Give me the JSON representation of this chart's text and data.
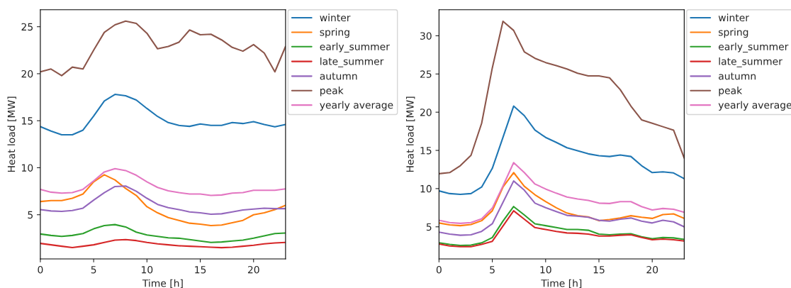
{
  "chart_data": [
    {
      "type": "line",
      "xlabel": "Time [h]",
      "ylabel": "Heat load [MW]",
      "x": [
        0,
        1,
        2,
        3,
        4,
        5,
        6,
        7,
        8,
        9,
        10,
        11,
        12,
        13,
        14,
        15,
        16,
        17,
        18,
        19,
        20,
        21,
        22,
        23
      ],
      "xlim": [
        0,
        23
      ],
      "xticks": [
        0,
        5,
        10,
        15,
        20
      ],
      "ylim": [
        0.3,
        26.8
      ],
      "yticks": [
        5,
        10,
        15,
        20,
        25
      ],
      "legend": "right",
      "grid": false,
      "series": [
        {
          "name": "winter",
          "color": "#1f77b4",
          "values": [
            14.37,
            13.9,
            13.5,
            13.5,
            14.0,
            15.5,
            17.1,
            17.8,
            17.65,
            17.2,
            16.3,
            15.45,
            14.8,
            14.5,
            14.4,
            14.65,
            14.5,
            14.5,
            14.8,
            14.7,
            14.9,
            14.6,
            14.35,
            14.6
          ]
        },
        {
          "name": "spring",
          "color": "#ff7f0e",
          "values": [
            6.4,
            6.5,
            6.5,
            6.75,
            7.2,
            8.5,
            9.25,
            8.7,
            7.8,
            7.05,
            5.85,
            5.2,
            4.7,
            4.4,
            4.1,
            4.0,
            3.85,
            3.9,
            4.15,
            4.4,
            5.0,
            5.2,
            5.55,
            6.0
          ]
        },
        {
          "name": "early_summer",
          "color": "#2ca02c",
          "values": [
            2.95,
            2.8,
            2.7,
            2.8,
            3.0,
            3.5,
            3.85,
            3.95,
            3.7,
            3.15,
            2.85,
            2.7,
            2.55,
            2.5,
            2.35,
            2.2,
            2.05,
            2.1,
            2.2,
            2.3,
            2.5,
            2.75,
            3.0,
            3.05
          ]
        },
        {
          "name": "late_summer",
          "color": "#d62728",
          "values": [
            1.95,
            1.8,
            1.65,
            1.5,
            1.65,
            1.8,
            2.05,
            2.3,
            2.35,
            2.25,
            2.05,
            1.9,
            1.8,
            1.7,
            1.65,
            1.6,
            1.55,
            1.5,
            1.55,
            1.65,
            1.75,
            1.9,
            2.0,
            2.05
          ]
        },
        {
          "name": "autumn",
          "color": "#9467bd",
          "values": [
            5.55,
            5.4,
            5.35,
            5.45,
            5.7,
            6.55,
            7.35,
            8.0,
            8.05,
            7.5,
            6.75,
            6.1,
            5.75,
            5.55,
            5.3,
            5.2,
            5.05,
            5.1,
            5.3,
            5.5,
            5.6,
            5.7,
            5.65,
            5.65
          ]
        },
        {
          "name": "peak",
          "color": "#8c564b",
          "values": [
            20.2,
            20.5,
            19.8,
            20.7,
            20.5,
            22.5,
            24.4,
            25.2,
            25.6,
            25.35,
            24.3,
            22.65,
            22.9,
            23.35,
            24.65,
            24.15,
            24.2,
            23.6,
            22.8,
            22.4,
            23.1,
            22.2,
            20.2,
            22.9
          ]
        },
        {
          "name": "yearly average",
          "color": "#e377c2",
          "values": [
            7.7,
            7.4,
            7.3,
            7.35,
            7.7,
            8.6,
            9.55,
            9.9,
            9.7,
            9.2,
            8.5,
            7.9,
            7.55,
            7.35,
            7.2,
            7.2,
            7.05,
            7.1,
            7.3,
            7.35,
            7.6,
            7.6,
            7.6,
            7.75
          ]
        }
      ]
    },
    {
      "type": "line",
      "xlabel": "Time [h]",
      "ylabel": "Heat load [MW]",
      "x": [
        0,
        1,
        2,
        3,
        4,
        5,
        6,
        7,
        8,
        9,
        10,
        11,
        12,
        13,
        14,
        15,
        16,
        17,
        18,
        19,
        20,
        21,
        22,
        23
      ],
      "xlim": [
        0,
        23
      ],
      "xticks": [
        0,
        5,
        10,
        15,
        20
      ],
      "ylim": [
        0.8,
        33.4
      ],
      "yticks": [
        5,
        10,
        15,
        20,
        25,
        30
      ],
      "legend": "right",
      "grid": false,
      "series": [
        {
          "name": "winter",
          "color": "#1f77b4",
          "values": [
            9.7,
            9.35,
            9.25,
            9.35,
            10.2,
            12.65,
            16.7,
            20.8,
            19.55,
            17.65,
            16.7,
            16.05,
            15.35,
            14.95,
            14.55,
            14.3,
            14.2,
            14.4,
            14.2,
            13.0,
            12.1,
            12.2,
            12.05,
            11.3
          ]
        },
        {
          "name": "spring",
          "color": "#ff7f0e",
          "values": [
            5.5,
            5.25,
            5.15,
            5.3,
            5.8,
            7.1,
            10.2,
            12.1,
            10.3,
            9.2,
            8.3,
            7.5,
            6.8,
            6.45,
            6.3,
            5.8,
            5.95,
            6.15,
            6.45,
            6.25,
            6.1,
            6.6,
            6.7,
            6.1
          ]
        },
        {
          "name": "early_summer",
          "color": "#2ca02c",
          "values": [
            2.9,
            2.7,
            2.55,
            2.6,
            2.9,
            3.6,
            5.75,
            7.65,
            6.55,
            5.4,
            5.15,
            4.9,
            4.65,
            4.65,
            4.55,
            4.05,
            3.95,
            4.05,
            4.1,
            3.7,
            3.45,
            3.6,
            3.55,
            3.35
          ]
        },
        {
          "name": "late_summer",
          "color": "#d62728",
          "values": [
            2.75,
            2.5,
            2.4,
            2.4,
            2.7,
            3.1,
            5.1,
            7.1,
            6.0,
            4.9,
            4.65,
            4.4,
            4.2,
            4.15,
            4.05,
            3.8,
            3.8,
            3.9,
            3.95,
            3.6,
            3.3,
            3.4,
            3.3,
            3.15
          ]
        },
        {
          "name": "autumn",
          "color": "#9467bd",
          "values": [
            4.3,
            4.05,
            3.9,
            3.95,
            4.4,
            5.4,
            8.2,
            11.0,
            9.8,
            8.1,
            7.5,
            7.0,
            6.5,
            6.4,
            6.25,
            5.85,
            5.75,
            6.0,
            6.15,
            5.75,
            5.5,
            5.85,
            5.65,
            5.0
          ]
        },
        {
          "name": "peak",
          "color": "#8c564b",
          "values": [
            11.95,
            12.1,
            13.0,
            14.35,
            18.55,
            25.8,
            31.9,
            30.7,
            27.9,
            27.05,
            26.5,
            26.1,
            25.65,
            25.1,
            24.75,
            24.75,
            24.5,
            22.95,
            20.8,
            19.0,
            18.55,
            18.1,
            17.65,
            14.0
          ]
        },
        {
          "name": "yearly average",
          "color": "#e377c2",
          "values": [
            5.85,
            5.55,
            5.45,
            5.55,
            6.05,
            7.45,
            10.35,
            13.4,
            12.1,
            10.6,
            9.95,
            9.4,
            8.9,
            8.65,
            8.45,
            8.1,
            8.05,
            8.3,
            8.3,
            7.65,
            7.2,
            7.4,
            7.3,
            6.9
          ]
        }
      ]
    }
  ]
}
